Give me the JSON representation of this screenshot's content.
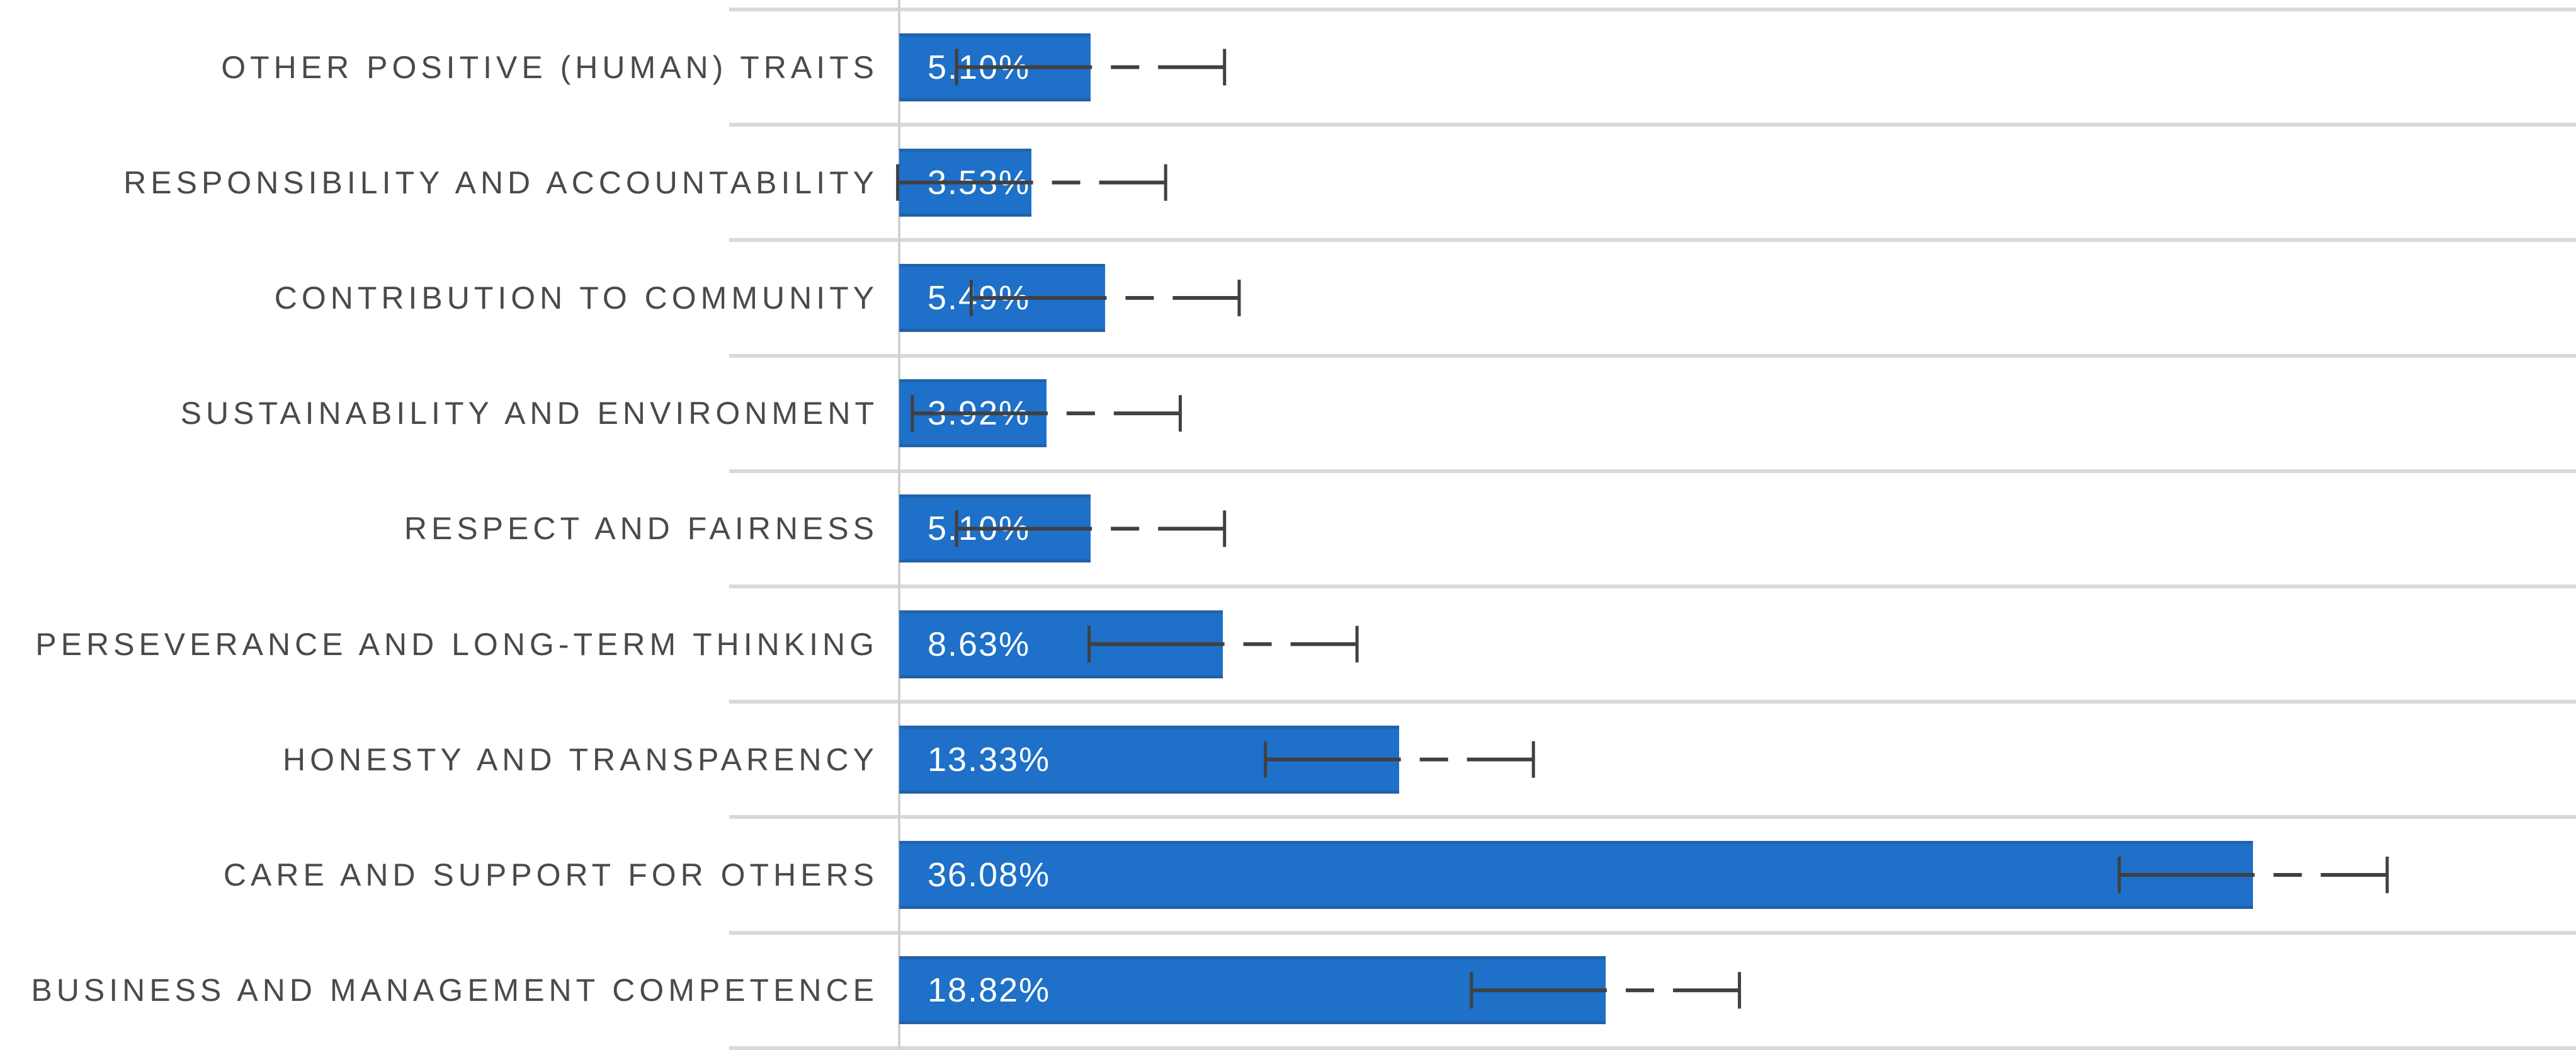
{
  "chart_data": {
    "type": "bar",
    "orientation": "horizontal",
    "title": "",
    "xlabel": "",
    "ylabel": "",
    "legend": "none",
    "grid": "category separator lines + zero axis line",
    "xlim": [
      -4.5,
      44.8
    ],
    "categories": [
      "OTHER POSITIVE (HUMAN) TRAITS",
      "RESPONSIBILITY AND ACCOUNTABILITY",
      "CONTRIBUTION TO COMMUNITY",
      "SUSTAINABILITY AND ENVIRONMENT",
      "RESPECT AND FAIRNESS",
      "PERSEVERANCE AND LONG-TERM THINKING",
      "HONESTY AND TRANSPARENCY",
      "CARE AND SUPPORT FOR OTHERS",
      "BUSINESS AND MANAGEMENT COMPETENCE"
    ],
    "values": [
      5.1,
      3.53,
      5.49,
      3.92,
      5.1,
      8.63,
      13.33,
      36.08,
      18.82
    ],
    "value_labels": [
      "5.10%",
      "3.53%",
      "5.49%",
      "3.92%",
      "5.10%",
      "8.63%",
      "13.33%",
      "36.08%",
      "18.82%"
    ],
    "error_bars": {
      "type": "symmetric",
      "margin_pct": 3.57,
      "style": "long-dash-dot line with end caps"
    },
    "colors": {
      "bar": "#1e70c8",
      "value_text": "#ffffff",
      "category_text": "#4a4a4a",
      "gridline": "#d9d9d9",
      "axis_line": "#d2d2d2",
      "error_bar": "#404040"
    }
  }
}
